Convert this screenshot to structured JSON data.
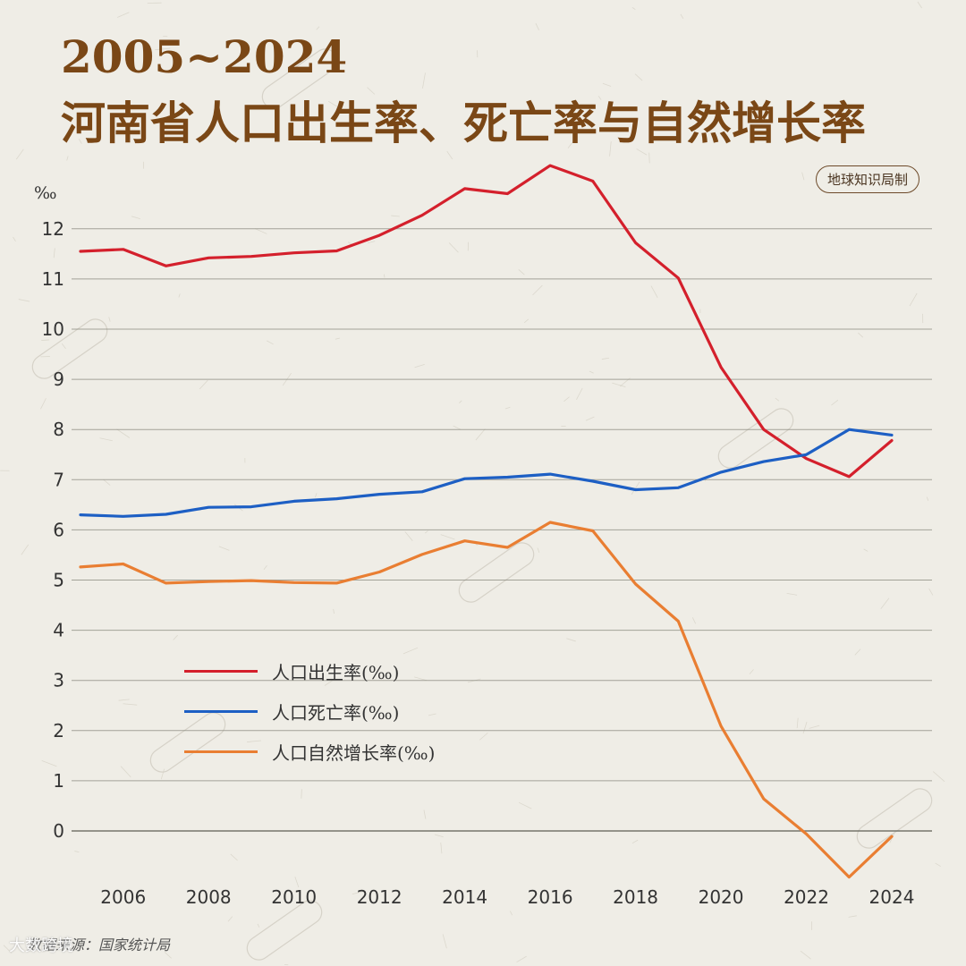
{
  "title": {
    "line1": "2005~2024",
    "line2": "河南省人口出生率、死亡率与自然增长率"
  },
  "badge": "地球知识局制",
  "source": "数据来源：国家统计局",
  "corner_mark": "大数跨境",
  "colors": {
    "birth": "#d4202c",
    "death": "#1d5fc4",
    "natural": "#e97e32",
    "title": "#7a4716",
    "grid": "#8a8a7e"
  },
  "chart_data": {
    "type": "line",
    "ylabel": "‰",
    "xlabel": "",
    "x": [
      2005,
      2006,
      2007,
      2008,
      2009,
      2010,
      2011,
      2012,
      2013,
      2014,
      2015,
      2016,
      2017,
      2018,
      2019,
      2020,
      2021,
      2022,
      2023,
      2024
    ],
    "xlim": [
      2005,
      2024
    ],
    "ylim": [
      -1,
      13
    ],
    "x_ticks": [
      2006,
      2008,
      2010,
      2012,
      2014,
      2016,
      2018,
      2020,
      2022,
      2024
    ],
    "y_ticks": [
      0,
      1,
      2,
      3,
      4,
      5,
      6,
      7,
      8,
      9,
      10,
      11,
      12
    ],
    "grid": true,
    "legend": "lower-left",
    "series": [
      {
        "name": "人口出生率(‰)",
        "key": "birth",
        "values": [
          11.55,
          11.59,
          11.26,
          11.42,
          11.45,
          11.52,
          11.56,
          11.87,
          12.27,
          12.8,
          12.7,
          13.26,
          12.95,
          11.72,
          11.02,
          9.24,
          8.0,
          7.42,
          7.06,
          7.78
        ]
      },
      {
        "name": "人口死亡率(‰)",
        "key": "death",
        "values": [
          6.3,
          6.27,
          6.31,
          6.45,
          6.46,
          6.57,
          6.62,
          6.71,
          6.76,
          7.02,
          7.05,
          7.11,
          6.97,
          6.8,
          6.84,
          7.15,
          7.36,
          7.5,
          8.0,
          7.89
        ]
      },
      {
        "name": "人口自然增长率(‰)",
        "key": "natural",
        "values": [
          5.26,
          5.32,
          4.94,
          4.97,
          4.99,
          4.95,
          4.94,
          5.16,
          5.51,
          5.78,
          5.65,
          6.15,
          5.98,
          4.92,
          4.18,
          2.09,
          0.64,
          -0.06,
          -0.92,
          -0.11
        ]
      }
    ]
  }
}
